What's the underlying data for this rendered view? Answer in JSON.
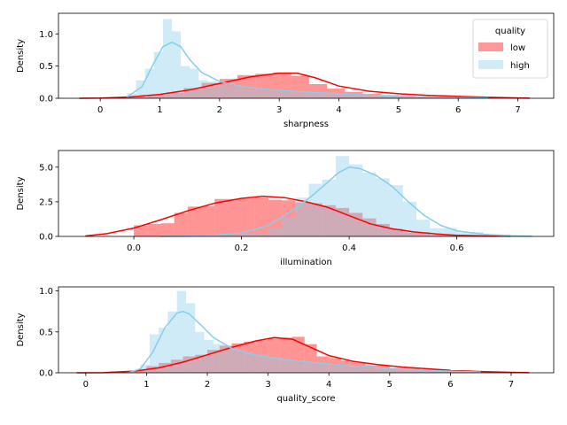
{
  "chart_data": [
    {
      "type": "histogram",
      "xlabel": "sharpness",
      "ylabel": "Density",
      "xlim": [
        -0.7,
        7.6
      ],
      "ylim": [
        0,
        1.32
      ],
      "xticks": [
        0,
        1,
        2,
        3,
        4,
        5,
        6,
        7
      ],
      "yticks": [
        0.0,
        0.5,
        1.0
      ],
      "legend": {
        "title": "quality",
        "placement": "top-right",
        "entries": [
          "low",
          "high"
        ]
      },
      "series": [
        {
          "name": "low",
          "color": "#ff0000",
          "bins_x": [
            [
              -0.1,
              0.2
            ],
            [
              0.2,
              0.5
            ],
            [
              0.5,
              0.8
            ],
            [
              0.8,
              1.1
            ],
            [
              1.1,
              1.4
            ],
            [
              1.4,
              1.7
            ],
            [
              1.7,
              2.0
            ],
            [
              2.0,
              2.3
            ],
            [
              2.3,
              2.6
            ],
            [
              2.6,
              2.9
            ],
            [
              2.9,
              3.2
            ],
            [
              3.2,
              3.5
            ],
            [
              3.5,
              3.8
            ],
            [
              3.8,
              4.1
            ],
            [
              4.1,
              4.4
            ],
            [
              4.4,
              4.7
            ],
            [
              4.7,
              5.0
            ],
            [
              5.0,
              5.3
            ],
            [
              5.3,
              5.6
            ],
            [
              5.6,
              5.9
            ],
            [
              5.9,
              6.2
            ],
            [
              6.2,
              6.5
            ],
            [
              6.5,
              6.8
            ]
          ],
          "bins_y": [
            0.0,
            0.01,
            0.02,
            0.05,
            0.09,
            0.16,
            0.24,
            0.3,
            0.36,
            0.38,
            0.4,
            0.35,
            0.22,
            0.15,
            0.1,
            0.07,
            0.05,
            0.04,
            0.03,
            0.02,
            0.015,
            0.01,
            0.005
          ],
          "kde_x": [
            -0.35,
            0,
            0.5,
            1,
            1.5,
            2,
            2.5,
            3,
            3.3,
            3.6,
            4,
            4.5,
            5,
            5.5,
            6,
            6.5,
            7,
            7.2
          ],
          "kde_y": [
            0.0,
            0.003,
            0.02,
            0.06,
            0.13,
            0.23,
            0.33,
            0.39,
            0.39,
            0.32,
            0.19,
            0.11,
            0.07,
            0.045,
            0.03,
            0.015,
            0.005,
            0.002
          ]
        },
        {
          "name": "high",
          "color": "#87ceeb",
          "bins_x": [
            [
              0.45,
              0.6
            ],
            [
              0.6,
              0.75
            ],
            [
              0.75,
              0.9
            ],
            [
              0.9,
              1.05
            ],
            [
              1.05,
              1.2
            ],
            [
              1.2,
              1.35
            ],
            [
              1.35,
              1.5
            ],
            [
              1.5,
              1.65
            ],
            [
              1.65,
              1.8
            ],
            [
              1.8,
              1.95
            ],
            [
              1.95,
              2.1
            ],
            [
              2.1,
              2.4
            ],
            [
              2.4,
              2.7
            ],
            [
              2.7,
              3.0
            ],
            [
              3.0,
              3.3
            ],
            [
              3.3,
              3.6
            ],
            [
              3.6,
              4.0
            ],
            [
              4.0,
              4.5
            ],
            [
              4.5,
              5.0
            ],
            [
              5.0,
              5.5
            ],
            [
              5.5,
              6.0
            ],
            [
              6.0,
              6.5
            ]
          ],
          "bins_y": [
            0.08,
            0.28,
            0.46,
            0.72,
            1.23,
            1.04,
            0.5,
            0.46,
            0.28,
            0.26,
            0.21,
            0.18,
            0.14,
            0.12,
            0.1,
            0.09,
            0.07,
            0.05,
            0.03,
            0.02,
            0.01,
            0.005
          ],
          "kde_x": [
            0.45,
            0.7,
            0.9,
            1.05,
            1.2,
            1.35,
            1.5,
            1.7,
            2.0,
            2.4,
            2.8,
            3.2,
            3.6,
            4.0,
            4.5,
            5.0,
            5.5,
            6.0,
            6.5
          ],
          "kde_y": [
            0.02,
            0.18,
            0.55,
            0.8,
            0.87,
            0.8,
            0.6,
            0.4,
            0.26,
            0.18,
            0.14,
            0.11,
            0.09,
            0.07,
            0.05,
            0.03,
            0.02,
            0.01,
            0.005
          ]
        }
      ]
    },
    {
      "type": "histogram",
      "xlabel": "illumination",
      "ylabel": "Density",
      "xlim": [
        -0.14,
        0.78
      ],
      "ylim": [
        0,
        6.2
      ],
      "xticks": [
        0.0,
        0.2,
        0.4,
        0.6
      ],
      "yticks": [
        0.0,
        2.5,
        5.0
      ],
      "series": [
        {
          "name": "low",
          "color": "#ff0000",
          "bins_x": [
            [
              0.0,
              0.025
            ],
            [
              0.025,
              0.05
            ],
            [
              0.05,
              0.075
            ],
            [
              0.075,
              0.1
            ],
            [
              0.1,
              0.125
            ],
            [
              0.125,
              0.15
            ],
            [
              0.15,
              0.2
            ],
            [
              0.2,
              0.225
            ],
            [
              0.225,
              0.25
            ],
            [
              0.25,
              0.275
            ],
            [
              0.275,
              0.3
            ],
            [
              0.3,
              0.325
            ],
            [
              0.325,
              0.35
            ],
            [
              0.35,
              0.375
            ],
            [
              0.375,
              0.4
            ],
            [
              0.4,
              0.425
            ],
            [
              0.425,
              0.45
            ],
            [
              0.45,
              0.475
            ],
            [
              0.475,
              0.5
            ],
            [
              0.5,
              0.55
            ],
            [
              0.55,
              0.6
            ]
          ],
          "bins_y": [
            0.8,
            0.9,
            0.95,
            1.7,
            2.15,
            2.2,
            2.7,
            2.75,
            2.8,
            2.65,
            2.6,
            2.45,
            2.4,
            2.25,
            2.05,
            1.7,
            1.3,
            0.9,
            0.55,
            0.3,
            0.1
          ],
          "kde_x": [
            -0.09,
            -0.05,
            0.0,
            0.05,
            0.1,
            0.15,
            0.2,
            0.24,
            0.28,
            0.32,
            0.36,
            0.4,
            0.44,
            0.48,
            0.52,
            0.56,
            0.6,
            0.65,
            0.7
          ],
          "kde_y": [
            0.03,
            0.2,
            0.6,
            1.2,
            1.85,
            2.4,
            2.75,
            2.9,
            2.8,
            2.5,
            2.1,
            1.5,
            0.9,
            0.55,
            0.33,
            0.18,
            0.08,
            0.03,
            0.01
          ]
        },
        {
          "name": "high",
          "color": "#87ceeb",
          "bins_x": [
            [
              0.15,
              0.2
            ],
            [
              0.2,
              0.25
            ],
            [
              0.25,
              0.275
            ],
            [
              0.275,
              0.3
            ],
            [
              0.3,
              0.325
            ],
            [
              0.325,
              0.35
            ],
            [
              0.35,
              0.375
            ],
            [
              0.375,
              0.4
            ],
            [
              0.4,
              0.425
            ],
            [
              0.425,
              0.45
            ],
            [
              0.45,
              0.475
            ],
            [
              0.475,
              0.5
            ],
            [
              0.5,
              0.525
            ],
            [
              0.525,
              0.55
            ],
            [
              0.55,
              0.6
            ],
            [
              0.6,
              0.65
            ],
            [
              0.65,
              0.7
            ],
            [
              0.7,
              0.74
            ]
          ],
          "bins_y": [
            0.1,
            0.2,
            0.6,
            1.4,
            2.8,
            3.8,
            4.1,
            5.8,
            5.2,
            4.6,
            4.2,
            3.7,
            2.5,
            1.2,
            0.6,
            0.3,
            0.15,
            0.05
          ],
          "kde_x": [
            0.05,
            0.1,
            0.15,
            0.2,
            0.25,
            0.3,
            0.33,
            0.36,
            0.38,
            0.4,
            0.42,
            0.45,
            0.48,
            0.51,
            0.54,
            0.57,
            0.6,
            0.65,
            0.7,
            0.74
          ],
          "kde_y": [
            0.0,
            0.02,
            0.08,
            0.25,
            0.8,
            2.0,
            2.9,
            3.9,
            4.6,
            5.0,
            4.9,
            4.4,
            3.6,
            2.5,
            1.5,
            0.8,
            0.4,
            0.15,
            0.05,
            0.02
          ]
        }
      ]
    },
    {
      "type": "histogram",
      "xlabel": "quality_score",
      "ylabel": "Density",
      "xlim": [
        -0.45,
        7.7
      ],
      "ylim": [
        0,
        1.05
      ],
      "xticks": [
        0,
        1,
        2,
        3,
        4,
        5,
        6,
        7
      ],
      "yticks": [
        0.0,
        0.5,
        1.0
      ],
      "series": [
        {
          "name": "low",
          "color": "#ff0000",
          "bins_x": [
            [
              0.0,
              0.6
            ],
            [
              0.6,
              0.8
            ],
            [
              0.8,
              1.0
            ],
            [
              1.0,
              1.2
            ],
            [
              1.2,
              1.4
            ],
            [
              1.4,
              1.6
            ],
            [
              1.6,
              1.8
            ],
            [
              1.8,
              2.0
            ],
            [
              2.0,
              2.2
            ],
            [
              2.2,
              2.4
            ],
            [
              2.4,
              2.6
            ],
            [
              2.6,
              2.8
            ],
            [
              2.8,
              3.0
            ],
            [
              3.0,
              3.2
            ],
            [
              3.2,
              3.4
            ],
            [
              3.4,
              3.6
            ],
            [
              3.6,
              3.8
            ],
            [
              3.8,
              4.0
            ],
            [
              4.0,
              4.2
            ],
            [
              4.2,
              4.4
            ],
            [
              4.4,
              4.6
            ],
            [
              4.6,
              5.0
            ],
            [
              5.0,
              5.5
            ],
            [
              5.5,
              6.0
            ],
            [
              6.0,
              6.5
            ],
            [
              6.5,
              7.0
            ]
          ],
          "bins_y": [
            0.0,
            0.01,
            0.03,
            0.08,
            0.12,
            0.16,
            0.2,
            0.22,
            0.28,
            0.33,
            0.36,
            0.38,
            0.4,
            0.42,
            0.43,
            0.44,
            0.35,
            0.2,
            0.18,
            0.15,
            0.12,
            0.09,
            0.06,
            0.04,
            0.02,
            0.01
          ],
          "kde_x": [
            -0.15,
            0.3,
            0.8,
            1.2,
            1.6,
            2.0,
            2.4,
            2.8,
            3.1,
            3.4,
            3.7,
            4.0,
            4.4,
            4.8,
            5.2,
            5.6,
            6.0,
            6.5,
            7.0,
            7.3
          ],
          "kde_y": [
            0.0,
            0.002,
            0.02,
            0.06,
            0.13,
            0.22,
            0.31,
            0.39,
            0.43,
            0.41,
            0.31,
            0.21,
            0.14,
            0.1,
            0.07,
            0.05,
            0.03,
            0.015,
            0.005,
            0.002
          ]
        },
        {
          "name": "high",
          "color": "#87ceeb",
          "bins_x": [
            [
              0.9,
              1.05
            ],
            [
              1.05,
              1.2
            ],
            [
              1.2,
              1.35
            ],
            [
              1.35,
              1.5
            ],
            [
              1.5,
              1.65
            ],
            [
              1.65,
              1.8
            ],
            [
              1.8,
              1.95
            ],
            [
              1.95,
              2.1
            ],
            [
              2.1,
              2.3
            ],
            [
              2.3,
              2.5
            ],
            [
              2.5,
              2.75
            ],
            [
              2.75,
              3.0
            ],
            [
              3.0,
              3.25
            ],
            [
              3.25,
              3.5
            ],
            [
              3.5,
              4.0
            ],
            [
              4.0,
              4.5
            ],
            [
              4.5,
              5.0
            ],
            [
              5.0,
              5.5
            ],
            [
              5.5,
              6.0
            ],
            [
              6.0,
              6.5
            ]
          ],
          "bins_y": [
            0.1,
            0.47,
            0.55,
            0.75,
            1.0,
            0.85,
            0.5,
            0.4,
            0.35,
            0.3,
            0.25,
            0.22,
            0.18,
            0.15,
            0.12,
            0.08,
            0.05,
            0.03,
            0.02,
            0.01
          ],
          "kde_x": [
            0.7,
            0.9,
            1.1,
            1.3,
            1.5,
            1.6,
            1.7,
            1.9,
            2.1,
            2.4,
            2.7,
            3.0,
            3.4,
            3.8,
            4.2,
            4.6,
            5.0,
            5.5,
            6.0,
            6.5
          ],
          "kde_y": [
            0.0,
            0.05,
            0.25,
            0.55,
            0.73,
            0.75,
            0.72,
            0.58,
            0.43,
            0.3,
            0.23,
            0.19,
            0.15,
            0.12,
            0.09,
            0.07,
            0.05,
            0.03,
            0.02,
            0.01
          ]
        }
      ]
    }
  ]
}
